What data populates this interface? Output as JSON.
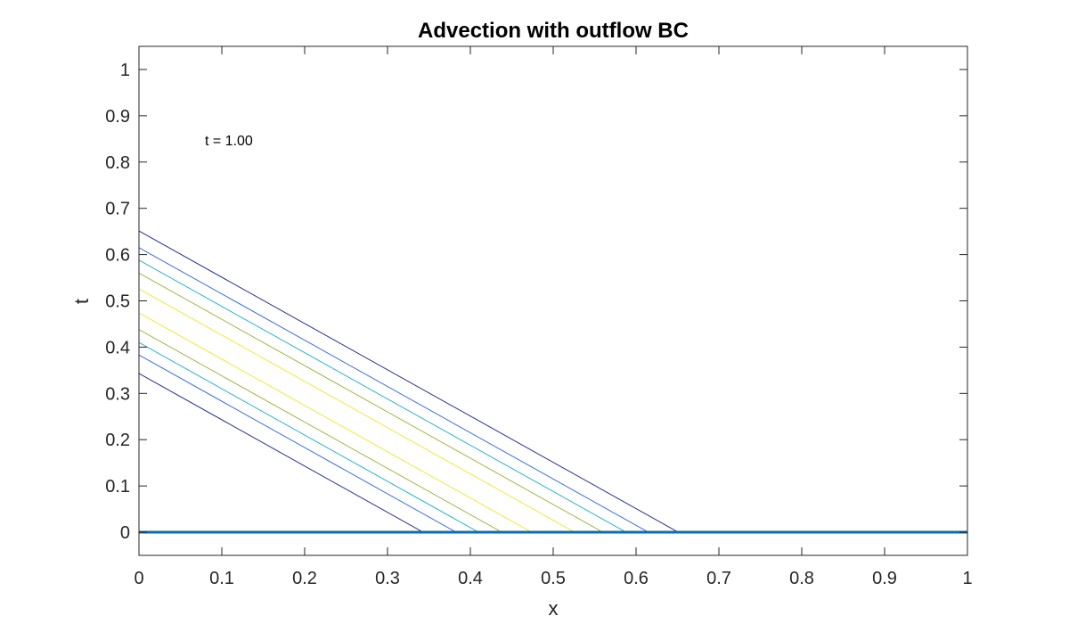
{
  "chart_data": {
    "type": "line",
    "title": "Advection with outflow BC",
    "xlabel": "x",
    "ylabel": "t",
    "xlim": [
      0,
      1
    ],
    "ylim": [
      -0.05,
      1.05
    ],
    "xticks": [
      "0",
      "0.1",
      "0.2",
      "0.3",
      "0.4",
      "0.5",
      "0.6",
      "0.7",
      "0.8",
      "0.9",
      "1"
    ],
    "yticks": [
      "0",
      "0.1",
      "0.2",
      "0.3",
      "0.4",
      "0.5",
      "0.6",
      "0.7",
      "0.8",
      "0.9",
      "1"
    ],
    "annotation": "t = 1.00",
    "grid": false,
    "box": true,
    "contour_lines": [
      {
        "x": [
          0,
          0.343
        ],
        "y": [
          0.343,
          0
        ],
        "color": "#2b2f8f"
      },
      {
        "x": [
          0,
          0.383
        ],
        "y": [
          0.383,
          0
        ],
        "color": "#3a6fd8"
      },
      {
        "x": [
          0,
          0.41
        ],
        "y": [
          0.41,
          0
        ],
        "color": "#2ab3c8"
      },
      {
        "x": [
          0,
          0.438
        ],
        "y": [
          0.438,
          0
        ],
        "color": "#a4b545"
      },
      {
        "x": [
          0,
          0.474
        ],
        "y": [
          0.474,
          0
        ],
        "color": "#f2e63a"
      },
      {
        "x": [
          0,
          0.526
        ],
        "y": [
          0.526,
          0
        ],
        "color": "#f2e63a"
      },
      {
        "x": [
          0,
          0.56
        ],
        "y": [
          0.56,
          0
        ],
        "color": "#a4b545"
      },
      {
        "x": [
          0,
          0.588
        ],
        "y": [
          0.588,
          0
        ],
        "color": "#2ab3c8"
      },
      {
        "x": [
          0,
          0.615
        ],
        "y": [
          0.615,
          0
        ],
        "color": "#3a6fd8"
      },
      {
        "x": [
          0,
          0.651
        ],
        "y": [
          0.651,
          0
        ],
        "color": "#2b2f8f"
      }
    ],
    "baseline": {
      "x": [
        0,
        1
      ],
      "y": [
        0,
        0
      ],
      "color": "#0b6db3"
    }
  }
}
